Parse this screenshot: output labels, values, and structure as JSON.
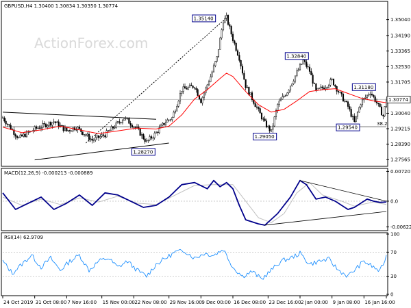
{
  "watermark": "ActionForex.com",
  "chart_data": [
    {
      "type": "candlestick",
      "header": "GBPUSD,H4 1.30400 1.30834 1.30350 1.30774",
      "ylim": [
        1.2728,
        1.3594
      ],
      "y_ticks": [
        1.27565,
        1.2839,
        1.29215,
        1.3004,
        1.30865,
        1.31705,
        1.3253,
        1.33365,
        1.3419,
        1.3504
      ],
      "y_tick_labels": [
        "1.27565",
        "1.28390",
        "1.29215",
        "1.30040",
        "1.30865",
        "1.31705",
        "1.32530",
        "1.33365",
        "1.34190",
        "1.35040"
      ],
      "current_price": 1.30774,
      "current_price_label": "1.30774",
      "fib_level": 1.2932,
      "fib_label": "38.2",
      "price_path": [
        [
          0,
          1.298
        ],
        [
          5,
          1.287
        ],
        [
          10,
          1.292
        ],
        [
          16,
          1.296
        ],
        [
          20,
          1.291
        ],
        [
          23,
          1.293
        ],
        [
          28,
          1.286
        ],
        [
          32,
          1.289
        ],
        [
          34,
          1.292
        ],
        [
          38,
          1.298
        ],
        [
          42,
          1.292
        ],
        [
          45,
          1.285
        ],
        [
          48,
          1.29
        ],
        [
          51,
          1.296
        ],
        [
          53,
          1.298
        ],
        [
          56,
          1.313
        ],
        [
          60,
          1.315
        ],
        [
          62,
          1.307
        ],
        [
          65,
          1.32
        ],
        [
          67,
          1.33
        ],
        [
          69,
          1.35
        ],
        [
          70,
          1.3514
        ],
        [
          72,
          1.34
        ],
        [
          74,
          1.33
        ],
        [
          76,
          1.315
        ],
        [
          79,
          1.305
        ],
        [
          82,
          1.295
        ],
        [
          84,
          1.2905
        ],
        [
          86,
          1.305
        ],
        [
          89,
          1.312
        ],
        [
          92,
          1.322
        ],
        [
          94,
          1.3284
        ],
        [
          96,
          1.323
        ],
        [
          98,
          1.312
        ],
        [
          101,
          1.315
        ],
        [
          103,
          1.318
        ],
        [
          105,
          1.312
        ],
        [
          108,
          1.304
        ],
        [
          110,
          1.2954
        ],
        [
          112,
          1.306
        ],
        [
          115,
          1.3118
        ],
        [
          117,
          1.306
        ],
        [
          119,
          1.299
        ],
        [
          120,
          1.3077
        ]
      ],
      "ma_path": [
        [
          0,
          1.293
        ],
        [
          6,
          1.29
        ],
        [
          12,
          1.2915
        ],
        [
          18,
          1.2935
        ],
        [
          24,
          1.2915
        ],
        [
          30,
          1.2895
        ],
        [
          36,
          1.291
        ],
        [
          42,
          1.2925
        ],
        [
          48,
          1.292
        ],
        [
          52,
          1.2935
        ],
        [
          56,
          1.2995
        ],
        [
          60,
          1.308
        ],
        [
          64,
          1.313
        ],
        [
          68,
          1.319
        ],
        [
          70,
          1.3218
        ],
        [
          72,
          1.32
        ],
        [
          76,
          1.312
        ],
        [
          80,
          1.305
        ],
        [
          84,
          1.301
        ],
        [
          88,
          1.3025
        ],
        [
          92,
          1.307
        ],
        [
          96,
          1.312
        ],
        [
          100,
          1.313
        ],
        [
          104,
          1.3135
        ],
        [
          108,
          1.311
        ],
        [
          112,
          1.3085
        ],
        [
          116,
          1.307
        ],
        [
          120,
          1.306
        ]
      ],
      "trendlines": [
        {
          "from": [
            26,
            1.2845
          ],
          "to": [
            70,
            1.3514
          ],
          "style": "dotted"
        },
        {
          "from": [
            0,
            1.301
          ],
          "to": [
            48,
            1.2972
          ],
          "style": "solid"
        },
        {
          "from": [
            10,
            1.2755
          ],
          "to": [
            52,
            1.2845
          ],
          "style": "solid"
        }
      ],
      "annotations": [
        {
          "label": "1.35140",
          "x": 67,
          "y": 1.3514
        },
        {
          "label": "1.32840",
          "x": 92,
          "y": 1.3284
        },
        {
          "label": "1.31180",
          "x": 113,
          "y": 1.3118
        },
        {
          "label": "1.29050",
          "x": 82,
          "y": 1.2905
        },
        {
          "label": "1.29540",
          "x": 108,
          "y": 1.2954
        },
        {
          "label": "1.28270",
          "x": 44,
          "y": 1.2827
        }
      ]
    },
    {
      "type": "line",
      "header": "MACD(12,26,9) -0.000213 -0.000889",
      "ylim": [
        -0.0068,
        0.0076
      ],
      "y_ticks": [
        0.0072,
        0.0,
        -0.00623
      ],
      "y_tick_labels": [
        "0.007201",
        "0.0",
        "-0.006229"
      ],
      "macd_path": [
        [
          0,
          0.002
        ],
        [
          4,
          -0.002
        ],
        [
          8,
          -0.0005
        ],
        [
          12,
          0.001
        ],
        [
          16,
          -0.002
        ],
        [
          20,
          -0.0005
        ],
        [
          24,
          0.0015
        ],
        [
          28,
          -0.001
        ],
        [
          32,
          0.002
        ],
        [
          36,
          0.0015
        ],
        [
          40,
          0.0
        ],
        [
          44,
          -0.0015
        ],
        [
          48,
          -0.001
        ],
        [
          52,
          0.001
        ],
        [
          56,
          0.004
        ],
        [
          60,
          0.0045
        ],
        [
          64,
          0.003
        ],
        [
          66,
          0.005
        ],
        [
          68,
          0.0035
        ],
        [
          70,
          0.0045
        ],
        [
          72,
          0.003
        ],
        [
          74,
          -0.001
        ],
        [
          76,
          -0.0045
        ],
        [
          80,
          -0.0055
        ],
        [
          82,
          -0.0058
        ],
        [
          86,
          -0.003
        ],
        [
          90,
          0.001
        ],
        [
          93,
          0.005
        ],
        [
          95,
          0.004
        ],
        [
          98,
          0.0005
        ],
        [
          101,
          0.001
        ],
        [
          104,
          0.0
        ],
        [
          108,
          -0.002
        ],
        [
          110,
          -0.0015
        ],
        [
          114,
          0.0005
        ],
        [
          116,
          0.0
        ],
        [
          118,
          -0.0003
        ],
        [
          120,
          -0.0002
        ]
      ],
      "signal_path": [
        [
          0,
          0.001
        ],
        [
          6,
          -0.001
        ],
        [
          12,
          0.0005
        ],
        [
          18,
          -0.0008
        ],
        [
          24,
          0.0008
        ],
        [
          30,
          -0.0002
        ],
        [
          36,
          0.0012
        ],
        [
          42,
          -0.0005
        ],
        [
          48,
          -0.0008
        ],
        [
          54,
          0.0015
        ],
        [
          60,
          0.0038
        ],
        [
          66,
          0.004
        ],
        [
          72,
          0.004
        ],
        [
          76,
          0.0
        ],
        [
          80,
          -0.004
        ],
        [
          84,
          -0.0052
        ],
        [
          88,
          -0.003
        ],
        [
          92,
          0.002
        ],
        [
          96,
          0.0045
        ],
        [
          100,
          0.0015
        ],
        [
          106,
          0.0
        ],
        [
          110,
          -0.0012
        ],
        [
          116,
          -0.0002
        ],
        [
          120,
          -0.0008
        ]
      ],
      "trendlines": [
        {
          "from": [
            93,
            0.005
          ],
          "to": [
            120,
            0.0
          ]
        },
        {
          "from": [
            82,
            -0.0058
          ],
          "to": [
            120,
            -0.0025
          ]
        }
      ]
    },
    {
      "type": "line",
      "header": "RSI(14) 62.9709",
      "ylim": [
        0,
        100
      ],
      "y_ticks": [
        100,
        70,
        30,
        0
      ],
      "y_tick_labels": [
        "100",
        "70",
        "30",
        "0"
      ],
      "rsi_path": [
        [
          0,
          55
        ],
        [
          3,
          35
        ],
        [
          6,
          50
        ],
        [
          9,
          65
        ],
        [
          12,
          45
        ],
        [
          15,
          60
        ],
        [
          18,
          40
        ],
        [
          21,
          55
        ],
        [
          24,
          65
        ],
        [
          27,
          40
        ],
        [
          30,
          55
        ],
        [
          33,
          60
        ],
        [
          36,
          45
        ],
        [
          39,
          55
        ],
        [
          42,
          40
        ],
        [
          45,
          30
        ],
        [
          48,
          50
        ],
        [
          51,
          60
        ],
        [
          54,
          70
        ],
        [
          57,
          72
        ],
        [
          60,
          60
        ],
        [
          63,
          68
        ],
        [
          66,
          65
        ],
        [
          69,
          75
        ],
        [
          72,
          45
        ],
        [
          75,
          30
        ],
        [
          78,
          38
        ],
        [
          81,
          25
        ],
        [
          84,
          40
        ],
        [
          87,
          55
        ],
        [
          90,
          60
        ],
        [
          93,
          68
        ],
        [
          96,
          50
        ],
        [
          99,
          55
        ],
        [
          102,
          58
        ],
        [
          105,
          40
        ],
        [
          108,
          30
        ],
        [
          110,
          40
        ],
        [
          113,
          55
        ],
        [
          116,
          45
        ],
        [
          118,
          38
        ],
        [
          120,
          63
        ]
      ]
    }
  ],
  "x_axis": {
    "ticks": [
      0,
      10,
      20,
      31,
      41,
      52,
      62,
      72,
      83,
      93,
      103,
      113,
      120
    ],
    "labels": [
      "24 Oct 2019",
      "31 Oct 08:00",
      "7 Nov 16:00",
      "15 Nov 00:00",
      "22 Nov 08:00",
      "29 Nov 16:00",
      "9 Dec 00:00",
      "16 Dec 08:00",
      "23 Dec 16:00",
      "2 Jan 00:00",
      "9 Jan 08:00",
      "16 Jan 16:00",
      ""
    ]
  },
  "colors": {
    "price": "#000000",
    "ma": "#ff0000",
    "macd": "#00008b",
    "signal": "#c0c0c0",
    "rsi": "#1e90ff",
    "grid": "#c0c0c0",
    "trend": "#000000",
    "annot": "#00008b"
  }
}
